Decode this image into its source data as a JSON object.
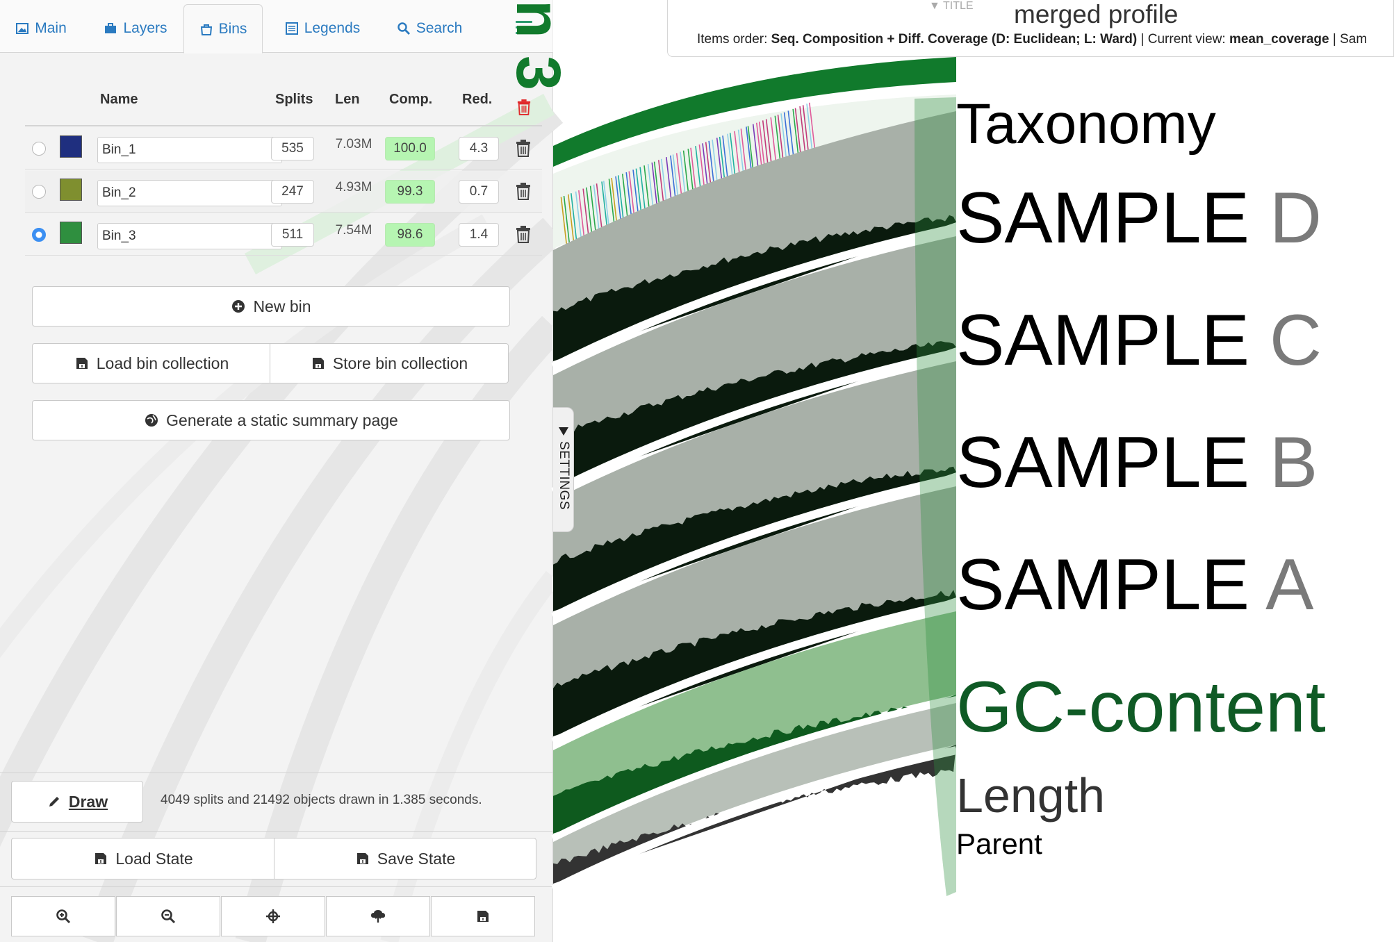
{
  "tabs": [
    {
      "label": "Main",
      "icon": "image-icon"
    },
    {
      "label": "Layers",
      "icon": "briefcase-icon"
    },
    {
      "label": "Bins",
      "icon": "bag-icon"
    },
    {
      "label": "Legends",
      "icon": "list-icon"
    },
    {
      "label": "Search",
      "icon": "search-icon"
    }
  ],
  "active_tab": "Bins",
  "bins_table": {
    "headers": {
      "name": "Name",
      "splits": "Splits",
      "len": "Len",
      "comp": "Comp.",
      "red": "Red."
    },
    "rows": [
      {
        "name": "Bin_1",
        "color": "#1f2f7f",
        "splits": "535",
        "len": "7.03M",
        "comp": "100.0",
        "red": "4.3",
        "selected": false
      },
      {
        "name": "Bin_2",
        "color": "#7f8f2f",
        "splits": "247",
        "len": "4.93M",
        "comp": "99.3",
        "red": "0.7",
        "selected": false
      },
      {
        "name": "Bin_3",
        "color": "#2f8f3f",
        "splits": "511",
        "len": "7.54M",
        "comp": "98.6",
        "red": "1.4",
        "selected": true
      }
    ]
  },
  "buttons": {
    "new_bin": "New bin",
    "load_collection": "Load bin collection",
    "store_collection": "Store bin collection",
    "summary": "Generate a static summary page",
    "draw": "Draw",
    "load_state": "Load State",
    "save_state": "Save State"
  },
  "draw_status": "4049 splits and 21492 objects drawn in 1.385 seconds.",
  "zoom_toolbar": [
    "zoom-in-icon",
    "zoom-out-icon",
    "center-icon",
    "upload-icon",
    "save-icon"
  ],
  "settings_label": "SETTINGS",
  "title_bar": {
    "tab_label": "TITLE",
    "title": "merged profile",
    "items_order_label": "Items order:",
    "items_order_value": "Seq. Composition + Diff. Coverage (D: Euclidean; L: Ward)",
    "current_view_label": "Current view:",
    "current_view_value": "mean_coverage",
    "trailing": "Sam"
  },
  "canvas_bin_label": "n 3",
  "legend": {
    "taxonomy": "Taxonomy",
    "samples": [
      {
        "head": "SAMPLE",
        "tail": "D"
      },
      {
        "head": "SAMPLE",
        "tail": "C"
      },
      {
        "head": "SAMPLE",
        "tail": "B"
      },
      {
        "head": "SAMPLE",
        "tail": "A"
      }
    ],
    "gc": "GC-content",
    "length": "Length",
    "parent": "Parent"
  },
  "colors": {
    "accent_blue": "#2a7ac0",
    "bin_green": "#117a2c",
    "comp_bg": "#b6f5b2",
    "trash_red": "#e0292b"
  }
}
